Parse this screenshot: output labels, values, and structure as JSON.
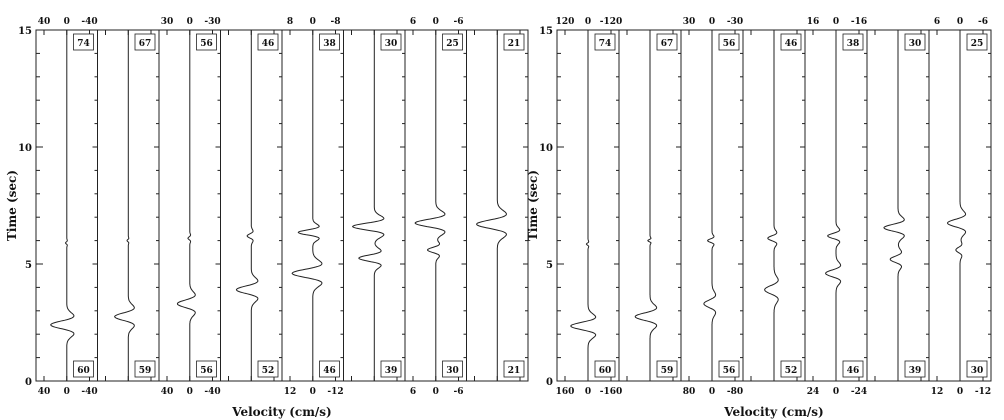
{
  "chart_data": [
    {
      "type": "line",
      "ylabel": "Time (sec)",
      "xlabel": "Velocity (cm/s)",
      "ylim": [
        0,
        15
      ],
      "yticks": [
        "0",
        "5",
        "10",
        "15"
      ],
      "panels": [
        {
          "top_ticks": [
            "40",
            "0",
            "-40"
          ],
          "bottom_ticks": [
            "40",
            "0",
            "-40"
          ],
          "top_label": "74",
          "bottom_label": "60",
          "amp": 40,
          "pulses": [
            {
              "t": 2.4,
              "a": -26,
              "w": 0.22
            },
            {
              "t": 5.9,
              "a": -2,
              "w": 0.06
            }
          ]
        },
        {
          "top_ticks": [
            "",
            "",
            ""
          ],
          "bottom_ticks": [
            "",
            "",
            ""
          ],
          "top_label": "67",
          "bottom_label": "59",
          "amp": 40,
          "pulses": [
            {
              "t": 2.75,
              "a": -22,
              "w": 0.22
            },
            {
              "t": 6.0,
              "a": -2,
              "w": 0.06
            }
          ]
        },
        {
          "top_ticks": [
            "30",
            "0",
            "-30"
          ],
          "bottom_ticks": [
            "40",
            "0",
            "-40"
          ],
          "top_label": "56",
          "bottom_label": "56",
          "amp": 40,
          "pulses": [
            {
              "t": 3.3,
              "a": -20,
              "w": 0.22
            },
            {
              "t": 6.1,
              "a": -3,
              "w": 0.08
            }
          ]
        },
        {
          "top_ticks": [
            "",
            "",
            ""
          ],
          "bottom_ticks": [
            "",
            "",
            ""
          ],
          "top_label": "46",
          "bottom_label": "52",
          "amp": 30,
          "pulses": [
            {
              "t": 3.9,
              "a": -18,
              "w": 0.22
            },
            {
              "t": 6.2,
              "a": -5,
              "w": 0.12
            }
          ]
        },
        {
          "top_ticks": [
            "8",
            "0",
            "-8"
          ],
          "bottom_ticks": [
            "12",
            "0",
            "-12"
          ],
          "top_label": "38",
          "bottom_label": "46",
          "amp": 12,
          "pulses": [
            {
              "t": 4.6,
              "a": -10,
              "w": 0.24
            },
            {
              "t": 6.35,
              "a": -7,
              "w": 0.15
            }
          ]
        },
        {
          "top_ticks": [
            "",
            "",
            ""
          ],
          "bottom_ticks": [
            "",
            "",
            ""
          ],
          "top_label": "30",
          "bottom_label": "39",
          "amp": 8,
          "pulses": [
            {
              "t": 5.25,
              "a": -5,
              "w": 0.18
            },
            {
              "t": 6.6,
              "a": -7,
              "w": 0.2
            }
          ]
        },
        {
          "top_ticks": [
            "6",
            "0",
            "-6"
          ],
          "bottom_ticks": [
            "6",
            "0",
            "-6"
          ],
          "top_label": "25",
          "bottom_label": "30",
          "amp": 6,
          "pulses": [
            {
              "t": 5.6,
              "a": -2,
              "w": 0.15
            },
            {
              "t": 6.75,
              "a": -5,
              "w": 0.22
            }
          ]
        },
        {
          "top_ticks": [
            "",
            "",
            ""
          ],
          "bottom_ticks": [
            "",
            "",
            ""
          ],
          "top_label": "21",
          "bottom_label": "21",
          "amp": 6,
          "pulses": [
            {
              "t": 6.7,
              "a": -5,
              "w": 0.25
            }
          ]
        }
      ]
    },
    {
      "type": "line",
      "ylabel": "Time (sec)",
      "xlabel": "Velocity (cm/s)",
      "ylim": [
        0,
        15
      ],
      "yticks": [
        "0",
        "5",
        "10",
        "15"
      ],
      "panels": [
        {
          "top_ticks": [
            "120",
            "0",
            "-120"
          ],
          "bottom_ticks": [
            "160",
            "0",
            "-160"
          ],
          "top_label": "74",
          "bottom_label": "60",
          "amp": 160,
          "pulses": [
            {
              "t": 2.35,
              "a": -110,
              "w": 0.22
            },
            {
              "t": 5.85,
              "a": -10,
              "w": 0.06
            }
          ]
        },
        {
          "top_ticks": [
            "",
            "",
            ""
          ],
          "bottom_ticks": [
            "",
            "",
            ""
          ],
          "top_label": "67",
          "bottom_label": "59",
          "amp": 160,
          "pulses": [
            {
              "t": 2.75,
              "a": -95,
              "w": 0.22
            },
            {
              "t": 6.0,
              "a": -14,
              "w": 0.06
            }
          ]
        },
        {
          "top_ticks": [
            "30",
            "0",
            "-30"
          ],
          "bottom_ticks": [
            "80",
            "0",
            "-80"
          ],
          "top_label": "56",
          "bottom_label": "56",
          "amp": 80,
          "pulses": [
            {
              "t": 3.3,
              "a": -26,
              "w": 0.22
            },
            {
              "t": 6.0,
              "a": -14,
              "w": 0.1
            }
          ]
        },
        {
          "top_ticks": [
            "",
            "",
            ""
          ],
          "bottom_ticks": [
            "",
            "",
            ""
          ],
          "top_label": "46",
          "bottom_label": "52",
          "amp": 80,
          "pulses": [
            {
              "t": 3.9,
              "a": -30,
              "w": 0.24
            },
            {
              "t": 6.1,
              "a": -20,
              "w": 0.14
            }
          ]
        },
        {
          "top_ticks": [
            "16",
            "0",
            "-16"
          ],
          "bottom_ticks": [
            "24",
            "0",
            "-24"
          ],
          "top_label": "38",
          "bottom_label": "46",
          "amp": 24,
          "pulses": [
            {
              "t": 4.6,
              "a": -10,
              "w": 0.2
            },
            {
              "t": 6.2,
              "a": -8,
              "w": 0.15
            }
          ]
        },
        {
          "top_ticks": [
            "",
            "",
            ""
          ],
          "bottom_ticks": [
            "",
            "",
            ""
          ],
          "top_label": "30",
          "bottom_label": "39",
          "amp": 16,
          "pulses": [
            {
              "t": 5.2,
              "a": -5,
              "w": 0.18
            },
            {
              "t": 6.55,
              "a": -9,
              "w": 0.2
            }
          ]
        },
        {
          "top_ticks": [
            "6",
            "0",
            "-6"
          ],
          "bottom_ticks": [
            "12",
            "0",
            "-12"
          ],
          "top_label": "25",
          "bottom_label": "30",
          "amp": 12,
          "pulses": [
            {
              "t": 5.6,
              "a": -2,
              "w": 0.15
            },
            {
              "t": 6.75,
              "a": -6,
              "w": 0.22
            }
          ]
        }
      ]
    }
  ]
}
